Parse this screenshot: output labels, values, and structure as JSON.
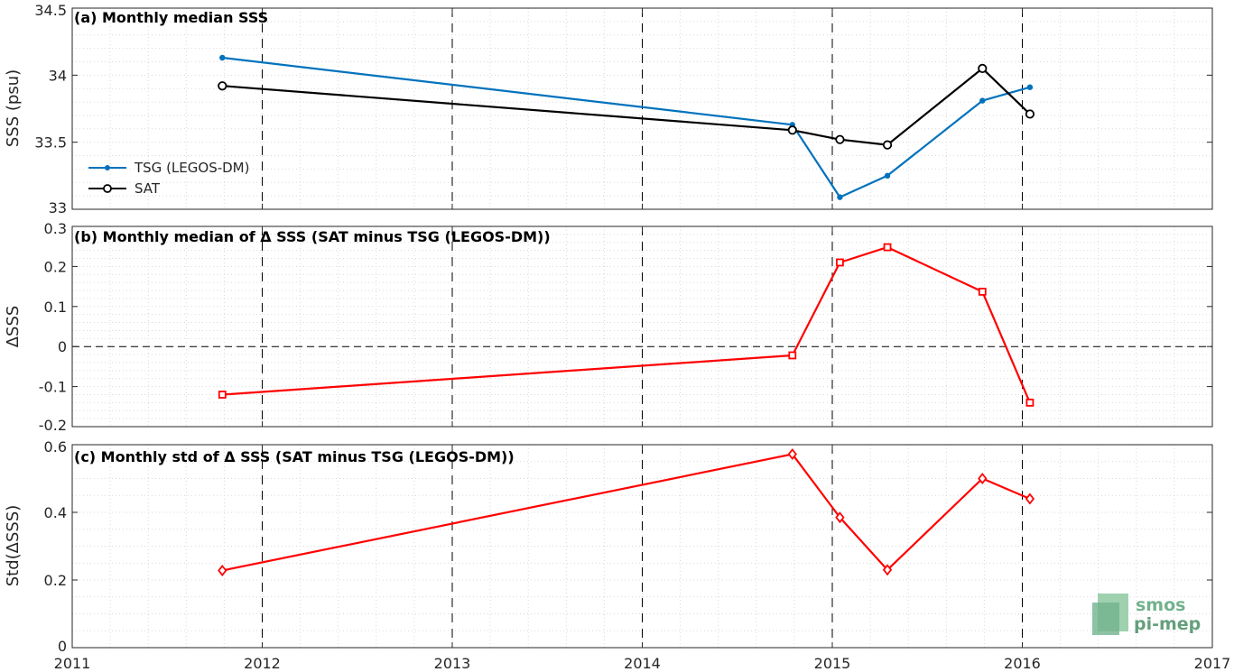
{
  "chart_data": [
    {
      "type": "line",
      "title": "(a) Monthly median SSS",
      "ylabel": "SSS (psu)",
      "xlim": [
        2011,
        2017
      ],
      "ylim": [
        33,
        34.5
      ],
      "yticks": [
        "33",
        "33.5",
        "34",
        "34.5"
      ],
      "xticks": [
        "2011",
        "2012",
        "2013",
        "2014",
        "2015",
        "2016",
        "2017"
      ],
      "legend_position": "left",
      "series": [
        {
          "name": "TSG (LEGOS-DM)",
          "color": "#0072bd",
          "marker": "dot",
          "x": [
            2011.79,
            2014.79,
            2015.04,
            2015.29,
            2015.79,
            2016.04
          ],
          "y": [
            34.13,
            33.63,
            33.09,
            33.25,
            33.81,
            33.91
          ]
        },
        {
          "name": "SAT",
          "color": "#000000",
          "marker": "circle",
          "x": [
            2011.79,
            2014.79,
            2015.04,
            2015.29,
            2015.79,
            2016.04
          ],
          "y": [
            33.92,
            33.59,
            33.52,
            33.48,
            34.05,
            33.71
          ]
        }
      ]
    },
    {
      "type": "line",
      "title": "(b) Monthly median of Δ SSS (SAT minus TSG (LEGOS-DM))",
      "ylabel": "ΔSSS",
      "xlim": [
        2011,
        2017
      ],
      "ylim": [
        -0.2,
        0.3
      ],
      "yticks": [
        "-0.2",
        "-0.1",
        "0",
        "0.1",
        "0.2",
        "0.3"
      ],
      "zero_line": true,
      "series": [
        {
          "color": "#ff0000",
          "marker": "square",
          "x": [
            2011.79,
            2014.79,
            2015.04,
            2015.29,
            2015.79,
            2016.04
          ],
          "y": [
            -0.12,
            -0.022,
            0.21,
            0.248,
            0.137,
            -0.14
          ]
        }
      ]
    },
    {
      "type": "line",
      "title": "(c) Monthly std of Δ SSS (SAT minus TSG (LEGOS-DM))",
      "ylabel": "Std(ΔSSS)",
      "xlim": [
        2011,
        2017
      ],
      "ylim": [
        0,
        0.6
      ],
      "yticks": [
        "0",
        "0.2",
        "0.4",
        "0.6"
      ],
      "xticks": [
        "2011",
        "2012",
        "2013",
        "2014",
        "2015",
        "2016",
        "2017"
      ],
      "series": [
        {
          "color": "#ff0000",
          "marker": "diamond",
          "x": [
            2011.79,
            2014.79,
            2015.04,
            2015.29,
            2015.79,
            2016.04
          ],
          "y": [
            0.228,
            0.572,
            0.385,
            0.23,
            0.5,
            0.44
          ]
        }
      ]
    }
  ],
  "logo": {
    "line1": "smos",
    "line2": "pi-mep",
    "color": "#5aa57a"
  },
  "colors": {
    "grid_minor": "#d9d9d9",
    "grid_major": "#000000",
    "axis": "#262626"
  }
}
